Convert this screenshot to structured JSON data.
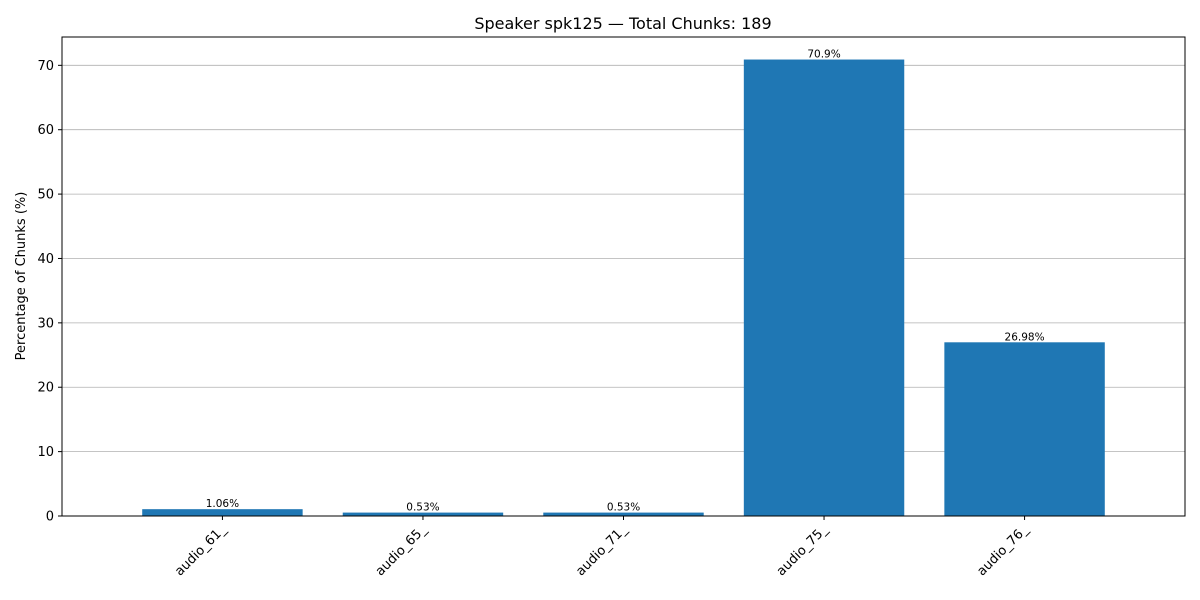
{
  "chart_data": {
    "type": "bar",
    "title": "Speaker spk125 — Total Chunks: 189",
    "xlabel": "",
    "ylabel": "Percentage of Chunks (%)",
    "categories": [
      "audio_61_",
      "audio_65_",
      "audio_71_",
      "audio_75_",
      "audio_76_"
    ],
    "values": [
      1.06,
      0.53,
      0.53,
      70.9,
      26.98
    ],
    "data_labels": [
      "1.06%",
      "0.53%",
      "0.53%",
      "70.9%",
      "26.98%"
    ],
    "ylim": [
      0,
      74.4
    ],
    "yticks": [
      0,
      10,
      20,
      30,
      40,
      50,
      60,
      70
    ],
    "grid": "y-axis on",
    "bar_color": "#1f77b4",
    "grid_color": "#b0b0b0"
  }
}
